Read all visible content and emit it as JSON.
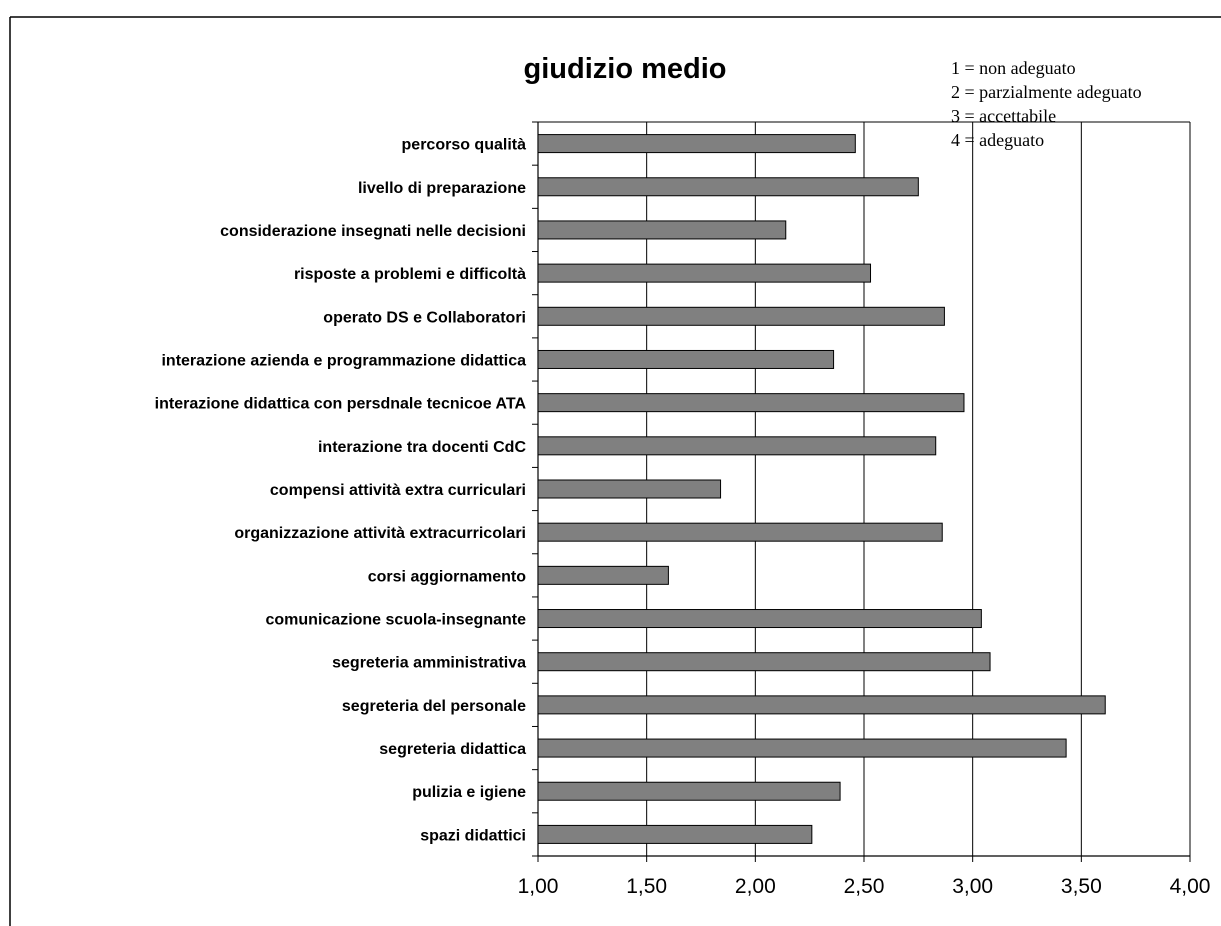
{
  "chart_data": {
    "type": "bar",
    "orientation": "horizontal",
    "title": "giudizio medio",
    "xlabel": "",
    "ylabel": "",
    "xlim": [
      1.0,
      4.0
    ],
    "x_ticks": [
      "1,00",
      "1,50",
      "2,00",
      "2,50",
      "3,00",
      "3,50",
      "4,00"
    ],
    "x_tick_values": [
      1.0,
      1.5,
      2.0,
      2.5,
      3.0,
      3.5,
      4.0
    ],
    "grid": "vertical",
    "bar_color": "#808080",
    "notes": [
      "1 = non adeguato",
      "2 = parzialmente adeguato",
      "3 = accettabile",
      "4 = adeguato"
    ],
    "categories": [
      "percorso qualità",
      "livello di preparazione",
      "considerazione insegnati nelle decisioni",
      "risposte a problemi e difficoltà",
      "operato DS e Collaboratori",
      "interazione azienda e programmazione didattica",
      "interazione didattica con persdnale tecnicoe ATA",
      "interazione tra docenti CdC",
      "compensi attività extra curriculari",
      "organizzazione attività extracurricolari",
      "corsi aggiornamento",
      "comunicazione scuola-insegnante",
      "segreteria amministrativa",
      "segreteria del personale",
      "segreteria didattica",
      "pulizia e igiene",
      "spazi didattici"
    ],
    "values": [
      2.46,
      2.75,
      2.14,
      2.53,
      2.87,
      2.36,
      2.96,
      2.83,
      1.84,
      2.86,
      1.6,
      3.04,
      3.08,
      3.61,
      3.43,
      2.39,
      2.26
    ]
  }
}
